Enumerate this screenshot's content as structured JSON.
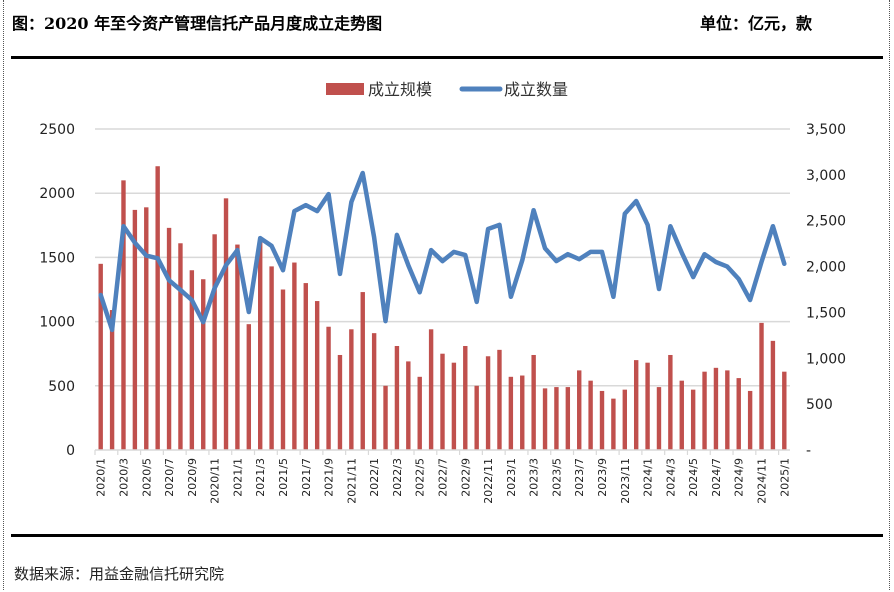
{
  "header": {
    "title": "图：2020 年至今资产管理信托产品月度成立走势图",
    "unit": "单位：亿元，款"
  },
  "footer": {
    "source": "数据来源：用益金融信托研究院"
  },
  "chart_data": {
    "type": "bar+line",
    "title": "图：2020 年至今资产管理信托产品月度成立走势图",
    "legend_position": "top",
    "grid": true,
    "colors": {
      "bar": "#C0504D",
      "line": "#4F81BD",
      "grid": "#D9D9D9"
    },
    "categories": [
      "2020/1",
      "2020/2",
      "2020/3",
      "2020/4",
      "2020/5",
      "2020/6",
      "2020/7",
      "2020/8",
      "2020/9",
      "2020/10",
      "2020/11",
      "2020/12",
      "2021/1",
      "2021/2",
      "2021/3",
      "2021/4",
      "2021/5",
      "2021/6",
      "2021/7",
      "2021/8",
      "2021/9",
      "2021/10",
      "2021/11",
      "2021/12",
      "2022/1",
      "2022/2",
      "2022/3",
      "2022/4",
      "2022/5",
      "2022/6",
      "2022/7",
      "2022/8",
      "2022/9",
      "2022/10",
      "2022/11",
      "2022/12",
      "2023/1",
      "2023/2",
      "2023/3",
      "2023/4",
      "2023/5",
      "2023/6",
      "2023/7",
      "2023/8",
      "2023/9",
      "2023/10",
      "2023/11",
      "2023/12",
      "2024/1",
      "2024/2",
      "2024/3",
      "2024/4",
      "2024/5",
      "2024/6",
      "2024/7",
      "2024/8",
      "2024/9",
      "2024/10",
      "2024/11",
      "2024/12",
      "2025/1"
    ],
    "x_tick_labels": [
      "2020/1",
      "2020/3",
      "2020/5",
      "2020/7",
      "2020/9",
      "2020/11",
      "2021/1",
      "2021/3",
      "2021/5",
      "2021/7",
      "2021/9",
      "2021/11",
      "2022/1",
      "2022/3",
      "2022/5",
      "2022/7",
      "2022/9",
      "2022/11",
      "2023/1",
      "2023/3",
      "2023/5",
      "2023/7",
      "2023/9",
      "2023/11",
      "2024/1",
      "2024/3",
      "2024/5",
      "2024/7",
      "2024/9",
      "2024/11",
      "2025/1"
    ],
    "series": [
      {
        "name": "成立规模",
        "type": "bar",
        "axis": "left",
        "values": [
          1450,
          1090,
          2100,
          1870,
          1890,
          2210,
          1730,
          1610,
          1400,
          1330,
          1680,
          1960,
          1600,
          980,
          1650,
          1430,
          1250,
          1460,
          1300,
          1160,
          960,
          740,
          940,
          1230,
          910,
          500,
          810,
          690,
          570,
          940,
          750,
          680,
          810,
          500,
          730,
          780,
          570,
          580,
          740,
          480,
          490,
          490,
          620,
          540,
          460,
          400,
          470,
          700,
          680,
          490,
          740,
          540,
          470,
          610,
          640,
          620,
          560,
          460,
          990,
          850,
          610
        ]
      },
      {
        "name": "成立数量",
        "type": "line",
        "axis": "right",
        "values": [
          1690,
          1310,
          2440,
          2260,
          2120,
          2090,
          1850,
          1745,
          1635,
          1395,
          1765,
          2015,
          2180,
          1505,
          2310,
          2225,
          1960,
          2605,
          2670,
          2605,
          2790,
          1920,
          2705,
          3020,
          2320,
          1405,
          2345,
          2015,
          1720,
          2180,
          2060,
          2160,
          2125,
          1615,
          2410,
          2455,
          1670,
          2070,
          2615,
          2200,
          2060,
          2135,
          2080,
          2160,
          2160,
          1670,
          2575,
          2715,
          2455,
          1755,
          2440,
          2150,
          1885,
          2135,
          2050,
          2000,
          1865,
          1635,
          2050,
          2440,
          2030
        ]
      }
    ],
    "y_left": {
      "range": [
        0,
        2500
      ],
      "ticks": [
        "0",
        "500",
        "1000",
        "1500",
        "2000",
        "2500"
      ],
      "label": ""
    },
    "y_right": {
      "range": [
        0,
        3500
      ],
      "ticks": [
        "-",
        "500",
        "1,000",
        "1,500",
        "2,000",
        "2,500",
        "3,000",
        "3,500"
      ],
      "label": ""
    },
    "xlabel": ""
  }
}
